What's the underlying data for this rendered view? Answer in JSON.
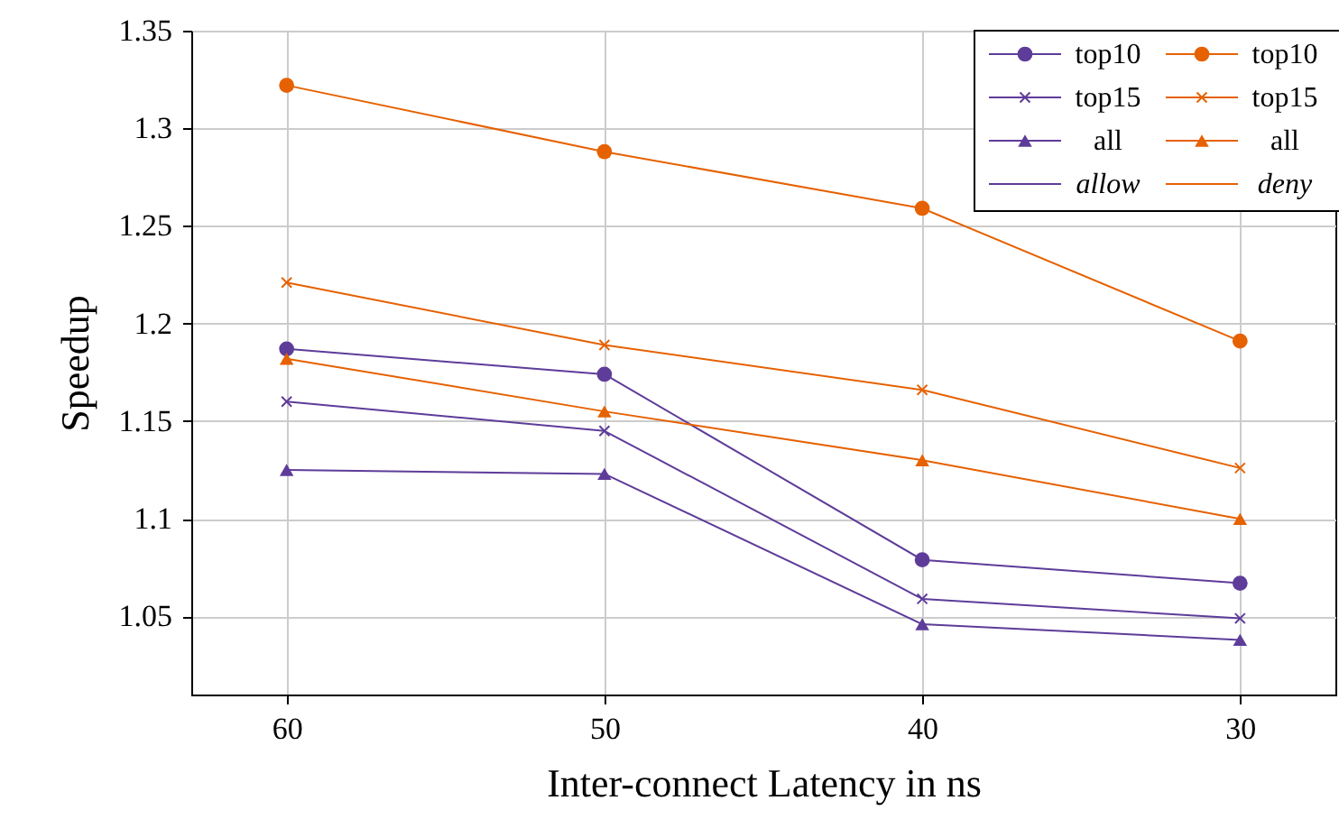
{
  "chart_data": {
    "type": "line",
    "xlabel": "Inter-connect Latency in ns",
    "ylabel": "Speedup",
    "categories": [
      "60",
      "50",
      "40",
      "30"
    ],
    "ylim": [
      1.01,
      1.35
    ],
    "yticks": [
      1.05,
      1.1,
      1.15,
      1.2,
      1.25,
      1.3,
      1.35
    ],
    "grid": true,
    "legend": "top right",
    "series": [
      {
        "name": "top10",
        "color": "#5e3c99",
        "marker": "circle",
        "values": [
          1.187,
          1.174,
          1.079,
          1.067
        ]
      },
      {
        "name": "top10",
        "color": "#e66101",
        "marker": "circle",
        "values": [
          1.322,
          1.288,
          1.259,
          1.191
        ]
      },
      {
        "name": "top15",
        "color": "#5e3c99",
        "marker": "cross",
        "values": [
          1.16,
          1.145,
          1.059,
          1.049
        ]
      },
      {
        "name": "top15",
        "color": "#e66101",
        "marker": "cross",
        "values": [
          1.221,
          1.189,
          1.166,
          1.126
        ]
      },
      {
        "name": "all",
        "color": "#5e3c99",
        "marker": "triangle",
        "values": [
          1.125,
          1.123,
          1.046,
          1.038
        ]
      },
      {
        "name": "all",
        "color": "#e66101",
        "marker": "triangle",
        "values": [
          1.182,
          1.155,
          1.13,
          1.1
        ]
      }
    ],
    "annotations": [
      "allow",
      "deny"
    ]
  }
}
